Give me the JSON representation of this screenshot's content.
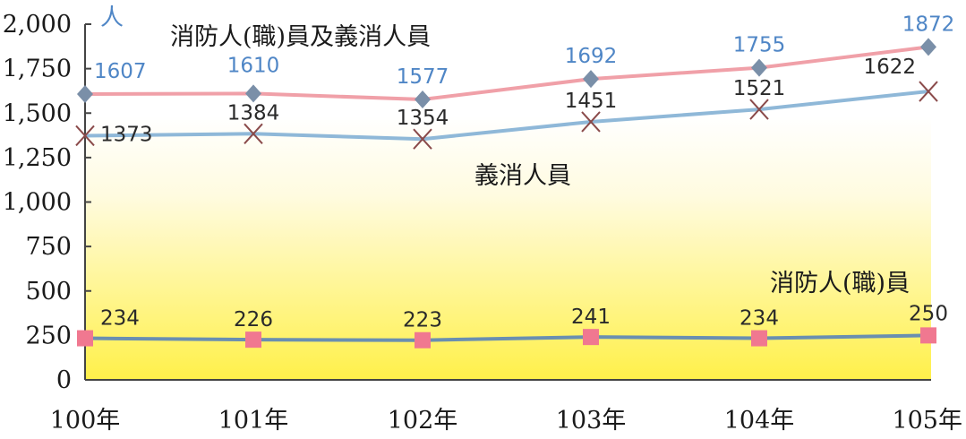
{
  "chart_data": {
    "type": "line",
    "unit_label": "人",
    "categories": [
      "100年",
      "101年",
      "102年",
      "103年",
      "104年",
      "105年"
    ],
    "ylim": [
      0,
      2000
    ],
    "yticks": [
      0,
      250,
      500,
      750,
      1000,
      1250,
      1500,
      1750,
      2000
    ],
    "ytick_labels": [
      "0",
      "250",
      "500",
      "750",
      "1,000",
      "1,250",
      "1,500",
      "1,750",
      "2,000"
    ],
    "grid": false,
    "series": [
      {
        "name": "消防人(職)員及義消人員",
        "values": [
          1607,
          1610,
          1577,
          1692,
          1755,
          1872
        ],
        "color": "#f0a0a8",
        "marker": "diamond",
        "label_color": "#4f86c6",
        "marker_color": "#7a8fa8"
      },
      {
        "name": "義消人員",
        "values": [
          1373,
          1384,
          1354,
          1451,
          1521,
          1622
        ],
        "color": "#8fb8d8",
        "marker": "x",
        "label_color": "#2a2a2a",
        "marker_color": "#8a4a4a"
      },
      {
        "name": "消防人(職)員",
        "values": [
          234,
          226,
          223,
          241,
          234,
          250
        ],
        "color": "#6a8fb0",
        "marker": "square",
        "label_color": "#2a2a2a",
        "marker_color": "#f07890"
      }
    ]
  }
}
